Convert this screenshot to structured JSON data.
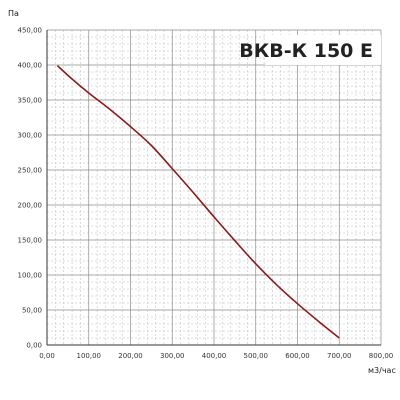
{
  "chart_data": {
    "type": "line",
    "title": "ВКВ-К 150 Е",
    "ylabel": "Па",
    "xlabel": "м3/час",
    "xlim": [
      0,
      800
    ],
    "ylim": [
      0,
      450
    ],
    "x_ticks": [
      "0,00",
      "100,00",
      "200,00",
      "300,00",
      "400,00",
      "500,00",
      "600,00",
      "700,00",
      "800,00"
    ],
    "y_ticks": [
      "0,00",
      "50,00",
      "100,00",
      "150,00",
      "200,00",
      "250,00",
      "300,00",
      "350,00",
      "400,00",
      "450,00"
    ],
    "grid": true,
    "minor_grid_step_x": 20,
    "minor_grid_step_y": 10,
    "series": [
      {
        "color": "#8b1a1a",
        "x": [
          25,
          60,
          100,
          150,
          200,
          250,
          300,
          350,
          400,
          450,
          500,
          550,
          600,
          650,
          700
        ],
        "y": [
          399,
          380,
          360,
          337,
          312,
          285,
          252,
          218,
          183,
          149,
          116,
          86,
          59,
          34,
          10
        ]
      }
    ]
  }
}
